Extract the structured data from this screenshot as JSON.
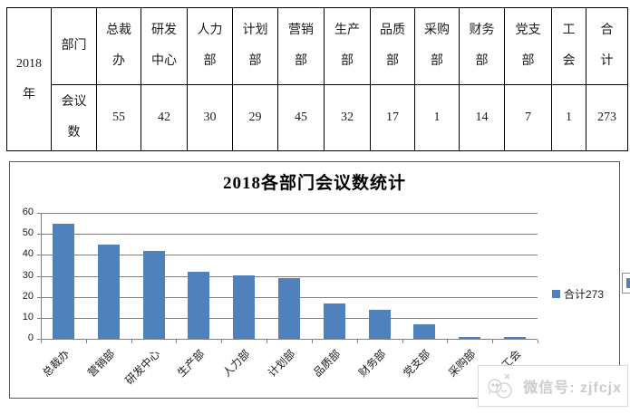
{
  "table": {
    "year": "2018\n年",
    "row_headers": {
      "dept": "部门",
      "meetings": "会议\n数"
    },
    "columns": [
      {
        "name": "总裁\n办",
        "value": "55"
      },
      {
        "name": "研发\n中心",
        "value": "42"
      },
      {
        "name": "人力\n部",
        "value": "30"
      },
      {
        "name": "计划\n部",
        "value": "29"
      },
      {
        "name": "营销\n部",
        "value": "45"
      },
      {
        "name": "生产\n部",
        "value": "32"
      },
      {
        "name": "品质\n部",
        "value": "17"
      },
      {
        "name": "采购\n部",
        "value": "1"
      },
      {
        "name": "财务\n部",
        "value": "14"
      },
      {
        "name": "党支\n部",
        "value": "7"
      },
      {
        "name": "工\n会",
        "value": "1"
      },
      {
        "name": "合\n计",
        "value": "273"
      }
    ]
  },
  "chart_data": {
    "type": "bar",
    "title": "2018各部门会议数统计",
    "categories": [
      "总裁办",
      "营销部",
      "研发中心",
      "生产部",
      "人力部",
      "计划部",
      "品质部",
      "财务部",
      "党支部",
      "采购部",
      "工会"
    ],
    "values": [
      55,
      45,
      42,
      32,
      30,
      29,
      17,
      14,
      7,
      1,
      1
    ],
    "xlabel": "",
    "ylabel": "",
    "ylim": [
      0,
      60
    ],
    "ytick_step": 10,
    "yticks": [
      0,
      10,
      20,
      30,
      40,
      50,
      60
    ],
    "grid": true,
    "legend": {
      "label": "合计273",
      "position": "right"
    },
    "bar_color": "#4F81BD",
    "gridline_color": "#808080"
  },
  "watermark": {
    "text": "微信号: zjfcjx"
  }
}
